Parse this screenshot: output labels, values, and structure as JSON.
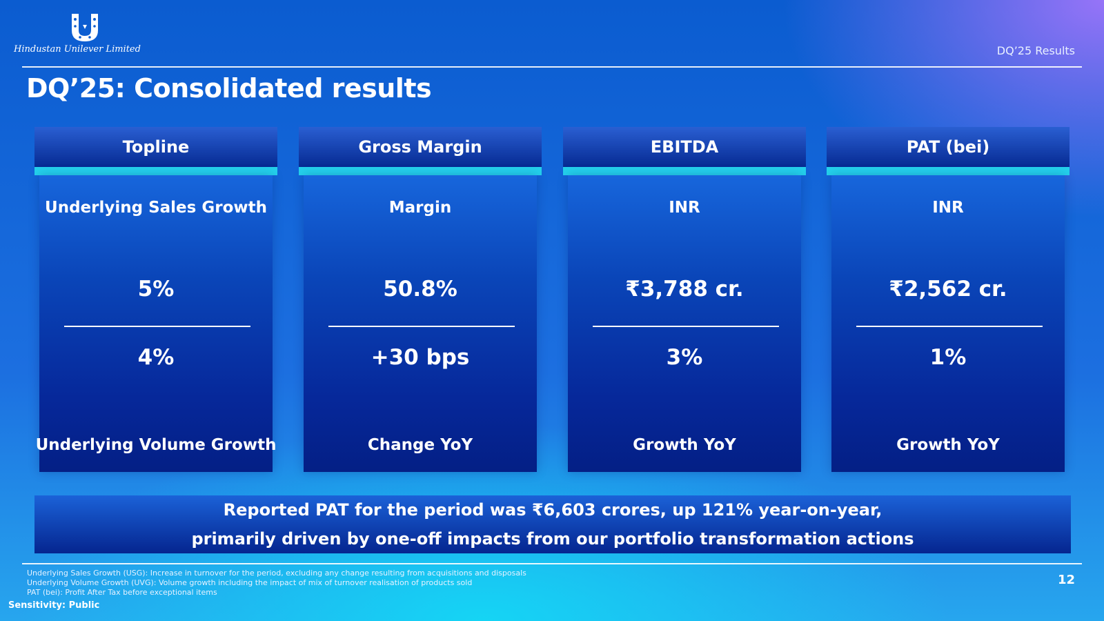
{
  "header": {
    "company_name": "Hindustan Unilever Limited",
    "section_label": "DQ’25 Results"
  },
  "title": "DQ’25: Consolidated results",
  "cards": [
    {
      "heading": "Topline",
      "top_label": "Underlying Sales Growth",
      "value": "5%",
      "change": "4%",
      "bottom_label": "Underlying Volume Growth"
    },
    {
      "heading": "Gross Margin",
      "top_label": "Margin",
      "value": "50.8%",
      "change": "+30 bps",
      "bottom_label": "Change YoY"
    },
    {
      "heading": "EBITDA",
      "top_label": "INR",
      "value": "₹3,788 cr.",
      "change": "3%",
      "bottom_label": "Growth YoY"
    },
    {
      "heading": "PAT (bei)",
      "top_label": "INR",
      "value": "₹2,562 cr.",
      "change": "1%",
      "bottom_label": "Growth YoY"
    }
  ],
  "banner": {
    "line1": "Reported PAT for the period was ₹6,603 crores, up 121% year-on-year,",
    "line2": "primarily driven by one-off impacts from our portfolio transformation actions"
  },
  "footnotes": [
    "Underlying Sales Growth (USG): Increase in turnover for the period, excluding any change resulting from acquisitions and disposals",
    "Underlying Volume Growth (UVG): Volume growth including the impact of mix of turnover realisation of products sold",
    "PAT (bei): Profit After Tax before exceptional items"
  ],
  "sensitivity": "Sensitivity: Public",
  "page_number": "12",
  "colors": {
    "accent_bar": "#24d1ec",
    "card_header": "#062a92",
    "card_body": "#0a45b8"
  }
}
